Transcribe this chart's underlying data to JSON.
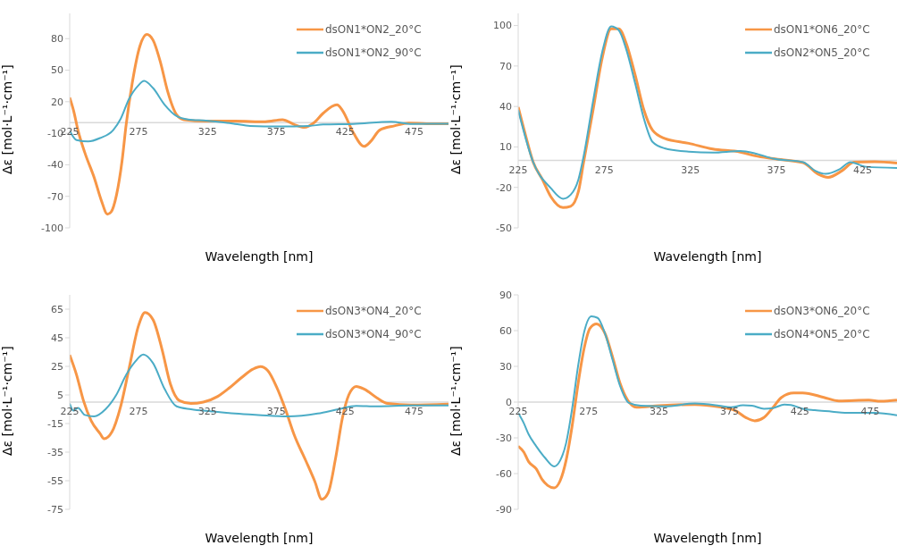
{
  "chart_data": [
    {
      "type": "line",
      "xlabel": "Wavelength [nm]",
      "ylabel": "Δε [mol·L⁻¹·cm⁻¹]",
      "xlim": [
        225,
        500
      ],
      "xticks": [
        225,
        275,
        325,
        375,
        425,
        475
      ],
      "ylim": [
        -100,
        104
      ],
      "yticks": [
        -100,
        -70,
        -40,
        -10,
        20,
        50,
        80
      ],
      "legend": "top right",
      "series": [
        {
          "name": "dsON1*ON2_20°C",
          "color": "#f79646",
          "x": [
            225,
            227.8,
            231,
            236,
            243,
            248,
            252.4,
            255,
            259,
            263,
            266,
            270.5,
            276,
            281,
            285.5,
            291,
            296,
            302.6,
            308,
            324,
            345,
            367,
            379.5,
            388,
            395.5,
            402,
            409,
            419,
            423,
            431,
            438.7,
            443.6,
            450,
            460.7,
            471,
            484,
            500
          ],
          "values": [
            24,
            11.7,
            -7,
            -28.5,
            -53,
            -74,
            -87,
            -85,
            -68.6,
            -36.5,
            -1.7,
            38.5,
            73,
            84,
            78.6,
            57,
            30.4,
            7.7,
            2.9,
            1.5,
            1.5,
            1,
            2.9,
            -1.7,
            -4.4,
            -0.3,
            9,
            17,
            11.7,
            -9.7,
            -22.5,
            -17.7,
            -7,
            -3,
            -0.3,
            -1,
            -1
          ]
        },
        {
          "name": "dsON1*ON2_90°C",
          "color": "#4bacc6",
          "x": [
            225,
            230,
            238.5,
            247,
            256.6,
            262,
            268,
            275,
            279,
            285.5,
            294,
            302.6,
            311,
            324,
            345,
            356,
            377,
            398.7,
            409,
            431,
            458.5,
            473.5,
            500
          ],
          "values": [
            -7.6,
            -16.5,
            -17.8,
            -14.6,
            -7,
            3.7,
            22.4,
            35.7,
            39.8,
            33,
            17,
            6.3,
            3.1,
            2,
            -1.1,
            -3,
            -3.6,
            -3,
            -1.7,
            -1.1,
            1,
            -1.1,
            -1
          ]
        }
      ]
    },
    {
      "type": "line",
      "xlabel": "Wavelength [nm]",
      "ylabel": "Δε [mol·L⁻¹·cm⁻¹]",
      "xlim": [
        225,
        445
      ],
      "xticks": [
        225,
        275,
        325,
        375,
        425
      ],
      "ylim": [
        -50,
        109
      ],
      "yticks": [
        -50,
        -20,
        10,
        40,
        70,
        100
      ],
      "legend": "top right",
      "series": [
        {
          "name": "dsON1*ON6_20°C",
          "color": "#f79646",
          "x": [
            225,
            229.4,
            233.7,
            239,
            244,
            251,
            255.5,
            260,
            263,
            268.5,
            273.8,
            279,
            283.4,
            287.7,
            293,
            298,
            303,
            310,
            324,
            338,
            354,
            362.6,
            373,
            390.5,
            399,
            405,
            413,
            420,
            432,
            445
          ],
          "values": [
            39.6,
            18,
            -1.3,
            -14,
            -27,
            -35,
            -34,
            -23,
            -1.3,
            37.4,
            76,
            97.6,
            97.6,
            87,
            63,
            37.4,
            22.4,
            16.3,
            12.7,
            8.4,
            6.2,
            3.4,
            1.3,
            -1.7,
            -10,
            -12.5,
            -7.7,
            -1.3,
            -0.9,
            -1.9
          ]
        },
        {
          "name": "dsON2*ON5_20°C",
          "color": "#4bacc6",
          "x": [
            225,
            233.7,
            244,
            251,
            255.5,
            260,
            263,
            268.5,
            273.8,
            279,
            283.4,
            287.7,
            293,
            298,
            303,
            310,
            324,
            338,
            354,
            362.6,
            373,
            390.5,
            397.5,
            403.6,
            411.4,
            418,
            427,
            445
          ],
          "values": [
            37.4,
            -1.3,
            -20.6,
            -28.4,
            -25.4,
            -14,
            3,
            44,
            80.4,
            99.4,
            96.6,
            82.6,
            56.8,
            31,
            13.8,
            9,
            6.5,
            5.8,
            6.9,
            5.2,
            1.3,
            -1.3,
            -7.7,
            -10,
            -6.7,
            -1.3,
            -4.7,
            -5.6
          ]
        }
      ]
    },
    {
      "type": "line",
      "xlabel": "Wavelength [nm]",
      "ylabel": "Δε [mol·L⁻¹·cm⁻¹]",
      "xlim": [
        225,
        500
      ],
      "xticks": [
        225,
        275,
        325,
        375,
        425,
        475
      ],
      "ylim": [
        -75,
        75
      ],
      "yticks": [
        -75,
        -55,
        -35,
        -15,
        5,
        25,
        45,
        65
      ],
      "legend": "top right",
      "series": [
        {
          "name": "dsON3*ON4_20°C",
          "color": "#f79646",
          "x": [
            225,
            230,
            235,
            240.6,
            247,
            250,
            255.6,
            262,
            268,
            275,
            279.7,
            285.5,
            292,
            298,
            304.7,
            313,
            322,
            332.5,
            341,
            349.6,
            358,
            363.5,
            368.8,
            375,
            381.6,
            388,
            396.6,
            403,
            408,
            412.6,
            418,
            423,
            427.6,
            433,
            439,
            448,
            456,
            473,
            500
          ],
          "values": [
            33,
            19,
            1,
            -13,
            -22,
            -25.7,
            -21,
            -3,
            23,
            53.5,
            62.6,
            57.6,
            37,
            13,
            1,
            -1,
            0,
            4,
            10,
            17,
            23,
            24.8,
            22,
            11,
            -5,
            -23,
            -41.4,
            -55.6,
            -68,
            -63.6,
            -39.4,
            -11,
            5,
            11,
            9,
            3,
            -1,
            -2,
            -1.4
          ]
        },
        {
          "name": "dsON3*ON4_90°C",
          "color": "#4bacc6",
          "x": [
            225,
            227.8,
            231,
            236,
            242.7,
            251,
            258.8,
            266,
            272.6,
            278.4,
            285.5,
            294,
            302.6,
            313,
            328,
            345,
            362,
            383.8,
            405,
            420,
            433,
            448,
            473,
            500
          ],
          "values": [
            -1,
            -6,
            -4,
            -9,
            -10,
            -5,
            5,
            19,
            28.3,
            33.3,
            27.3,
            9,
            -3,
            -5,
            -6.5,
            -8,
            -9,
            -10,
            -8,
            -5,
            -2.6,
            -3,
            -2.4,
            -2.4
          ]
        }
      ]
    },
    {
      "type": "line",
      "xlabel": "Wavelength [nm]",
      "ylabel": "Δε [mol·L⁻¹·cm⁻¹]",
      "xlim": [
        225,
        494
      ],
      "xticks": [
        225,
        275,
        325,
        375,
        425,
        475
      ],
      "ylim": [
        -90,
        90
      ],
      "yticks": [
        -90,
        -60,
        -30,
        0,
        30,
        60,
        90
      ],
      "legend": "top right",
      "series": [
        {
          "name": "dsON3*ON6_20°C",
          "color": "#f79646",
          "x": [
            225,
            229,
            232.4,
            237.8,
            242,
            246,
            250.5,
            254.8,
            259,
            263.3,
            267.6,
            271.8,
            276,
            280.7,
            286.7,
            292,
            297.3,
            302.7,
            309,
            325,
            350.5,
            367.5,
            379,
            386.7,
            393,
            399.5,
            406,
            412,
            420.7,
            427,
            442,
            452.7,
            474,
            482.4,
            494
          ],
          "values": [
            -37,
            -42,
            -50,
            -56,
            -65,
            -70,
            -72,
            -66,
            -49,
            -20,
            16,
            45,
            62,
            65.6,
            57.4,
            38,
            16,
            1.7,
            -4.4,
            -3,
            -2,
            -4,
            -7,
            -13,
            -15.7,
            -13,
            -4.4,
            4,
            7.7,
            7.7,
            4,
            1,
            1.7,
            0.7,
            1.7
          ]
        },
        {
          "name": "dsON4*ON5_20°C",
          "color": "#4bacc6",
          "x": [
            225,
            229,
            232.4,
            237.8,
            244,
            250.5,
            254.8,
            259,
            263.3,
            267.6,
            271.8,
            277,
            281.4,
            286.7,
            292,
            297.3,
            303.7,
            312,
            329,
            350.5,
            367.5,
            376,
            384.6,
            391,
            399.5,
            406,
            414,
            418.6,
            427,
            435.6,
            448,
            457,
            478,
            494
          ],
          "values": [
            -9,
            -17.7,
            -27,
            -37,
            -46.7,
            -54,
            -49,
            -34.6,
            -5.6,
            30.8,
            58.6,
            72,
            70.7,
            57.4,
            35.6,
            13.8,
            -0.7,
            -3,
            -3.6,
            -1.2,
            -3,
            -4.4,
            -2.7,
            -3,
            -5.6,
            -5,
            -2,
            -2.4,
            -5.6,
            -6.8,
            -8,
            -9,
            -9,
            -11
          ]
        }
      ]
    }
  ]
}
